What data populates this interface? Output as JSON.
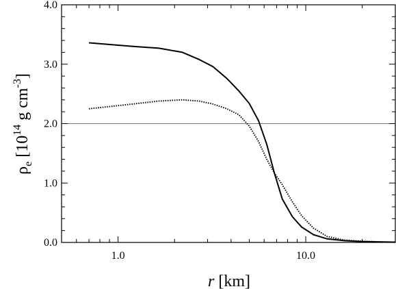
{
  "chart_data": {
    "type": "line",
    "title": "",
    "xlabel": {
      "italic": "r",
      "rest": " [km]"
    },
    "ylabel": {
      "rho": "ρ",
      "sub": "e",
      "open": " [10",
      "exp14": "14",
      "units": " g cm",
      "expm3": "-3",
      "close": "]"
    },
    "x_scale": "log",
    "xlim": [
      0.5,
      30
    ],
    "ylim": [
      0,
      4.0
    ],
    "x_tick_labels": [
      {
        "value": 1.0,
        "label": "1.0"
      },
      {
        "value": 10.0,
        "label": "10.0"
      }
    ],
    "y_tick_labels": [
      {
        "value": 0.0,
        "label": "0.0"
      },
      {
        "value": 1.0,
        "label": "1.0"
      },
      {
        "value": 2.0,
        "label": "2.0"
      },
      {
        "value": 3.0,
        "label": "3.0"
      },
      {
        "value": 4.0,
        "label": "4.0"
      }
    ],
    "reference_line": {
      "y": 2.0,
      "color": "#777777"
    },
    "series": [
      {
        "style": "solid",
        "color": "#000000",
        "x": [
          0.7,
          1.2,
          1.65,
          2.2,
          2.7,
          3.2,
          3.8,
          4.4,
          5.0,
          5.6,
          6.2,
          6.8,
          7.5,
          8.5,
          9.5,
          11.0,
          13.0,
          16.0,
          20.0,
          25.0,
          30.0
        ],
        "y": [
          3.36,
          3.3,
          3.27,
          3.2,
          3.08,
          2.96,
          2.76,
          2.55,
          2.34,
          2.05,
          1.65,
          1.17,
          0.73,
          0.43,
          0.26,
          0.13,
          0.06,
          0.03,
          0.015,
          0.008,
          0.005
        ]
      },
      {
        "style": "dotted",
        "color": "#000000",
        "x": [
          0.7,
          1.2,
          1.65,
          2.2,
          2.7,
          3.2,
          3.8,
          4.4,
          5.0,
          5.6,
          6.2,
          6.8,
          7.5,
          8.5,
          9.5,
          11.0,
          13.0,
          16.0,
          20.0,
          25.0,
          30.0
        ],
        "y": [
          2.25,
          2.33,
          2.38,
          2.4,
          2.38,
          2.33,
          2.25,
          2.15,
          1.96,
          1.7,
          1.4,
          1.17,
          0.97,
          0.68,
          0.45,
          0.24,
          0.1,
          0.04,
          0.02,
          0.01,
          0.005
        ]
      }
    ]
  }
}
